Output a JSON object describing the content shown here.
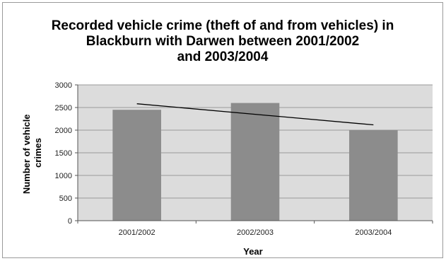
{
  "chart_data": {
    "type": "bar",
    "title_lines": [
      "Recorded vehicle crime (theft of and from vehicles) in",
      "Blackburn with Darwen between 2001/2002",
      "and 2003/2004"
    ],
    "xlabel": "Year",
    "ylabel_lines": [
      "Number of vehicle",
      "crimes"
    ],
    "categories": [
      "2001/2002",
      "2002/2003",
      "2003/2004"
    ],
    "values": [
      2450,
      2600,
      2000
    ],
    "trendline": {
      "type": "linear",
      "start": 2583,
      "end": 2117
    },
    "ylim": [
      0,
      3000
    ],
    "yticks": [
      "0",
      "500",
      "1000",
      "1500",
      "2000",
      "2500",
      "3000"
    ],
    "ytick_values": [
      0,
      500,
      1000,
      1500,
      2000,
      2500,
      3000
    ],
    "grid": true,
    "legend": "none",
    "colors": {
      "bar": "#8c8c8c",
      "plot_background": "#dcdcdc",
      "gridline": "#9a9a9a",
      "trendline": "#000000"
    }
  }
}
